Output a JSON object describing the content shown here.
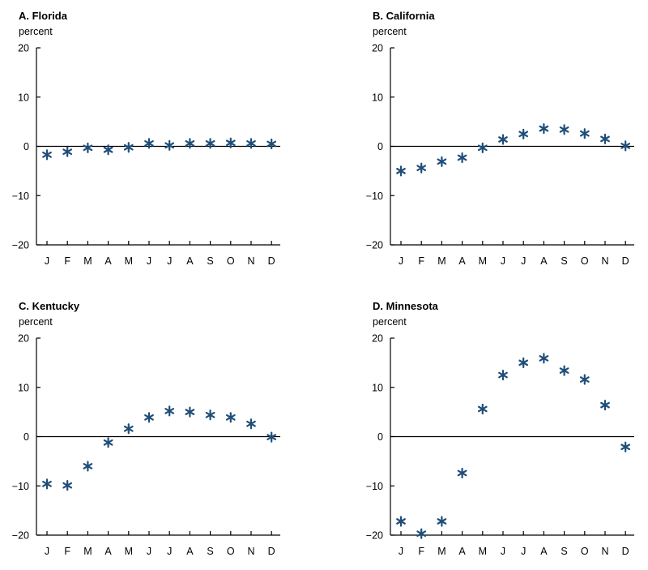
{
  "colors": {
    "marker": "#1f4e79",
    "axis": "#000000"
  },
  "chart_data": [
    {
      "type": "scatter",
      "title": "A. Florida",
      "ylabel": "percent",
      "ylim": [
        -20,
        20
      ],
      "yticks": [
        20,
        10,
        0,
        -10,
        -20
      ],
      "ytick_labels": [
        "20",
        "10",
        "0",
        "−10",
        "−20"
      ],
      "categories": [
        "J",
        "F",
        "M",
        "A",
        "M",
        "J",
        "J",
        "A",
        "S",
        "O",
        "N",
        "D"
      ],
      "values": [
        -1.7,
        -1.1,
        -0.3,
        -0.7,
        -0.2,
        0.6,
        0.2,
        0.6,
        0.6,
        0.7,
        0.6,
        0.5
      ]
    },
    {
      "type": "scatter",
      "title": "B. California",
      "ylabel": "percent",
      "ylim": [
        -20,
        20
      ],
      "yticks": [
        20,
        10,
        0,
        -10,
        -20
      ],
      "ytick_labels": [
        "20",
        "10",
        "0",
        "−10",
        "−20"
      ],
      "categories": [
        "J",
        "F",
        "M",
        "A",
        "M",
        "J",
        "J",
        "A",
        "S",
        "O",
        "N",
        "D"
      ],
      "values": [
        -5.0,
        -4.4,
        -3.1,
        -2.3,
        -0.3,
        1.4,
        2.5,
        3.6,
        3.4,
        2.6,
        1.5,
        0.1
      ]
    },
    {
      "type": "scatter",
      "title": "C. Kentucky",
      "ylabel": "percent",
      "ylim": [
        -20,
        20
      ],
      "yticks": [
        20,
        10,
        0,
        -10,
        -20
      ],
      "ytick_labels": [
        "20",
        "10",
        "0",
        "−10",
        "−20"
      ],
      "categories": [
        "J",
        "F",
        "M",
        "A",
        "M",
        "J",
        "J",
        "A",
        "S",
        "O",
        "N",
        "D"
      ],
      "values": [
        -9.6,
        -9.9,
        -6.0,
        -1.2,
        1.6,
        3.9,
        5.2,
        5.0,
        4.4,
        3.9,
        2.6,
        -0.1
      ]
    },
    {
      "type": "scatter",
      "title": "D. Minnesota",
      "ylabel": "percent",
      "ylim": [
        -20,
        20
      ],
      "yticks": [
        20,
        10,
        0,
        -10,
        -20
      ],
      "ytick_labels": [
        "20",
        "10",
        "0",
        "−10",
        "−20"
      ],
      "categories": [
        "J",
        "F",
        "M",
        "A",
        "M",
        "J",
        "J",
        "A",
        "S",
        "O",
        "N",
        "D"
      ],
      "values": [
        -17.2,
        -19.7,
        -17.2,
        -7.4,
        5.6,
        12.5,
        15.0,
        15.9,
        13.4,
        11.6,
        6.4,
        -2.1
      ]
    }
  ]
}
